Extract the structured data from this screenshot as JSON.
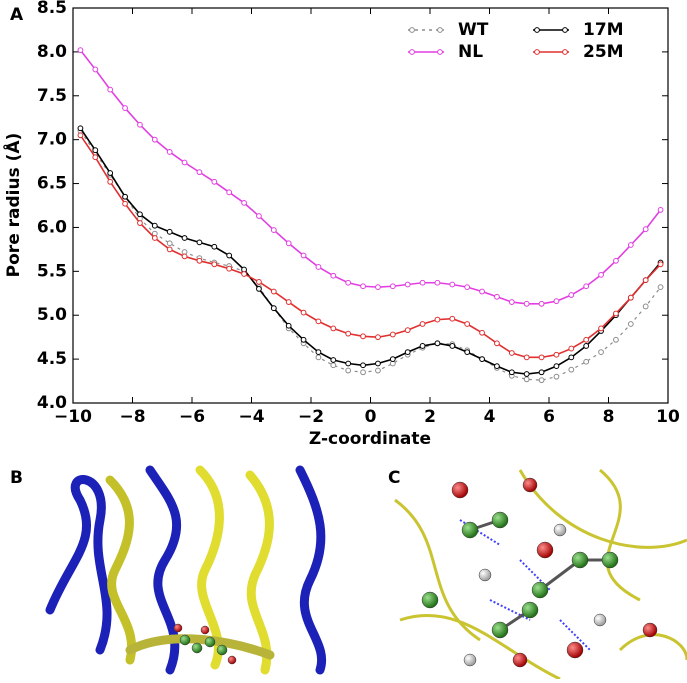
{
  "panel_labels": [
    "A",
    "B",
    "C"
  ],
  "chart_data": {
    "type": "line",
    "xlabel": "Z-coordinate",
    "ylabel": "Pore radius (Å)",
    "xlim": [
      -10,
      10
    ],
    "ylim": [
      4.0,
      8.5
    ],
    "xticks": [
      {
        "value": -10,
        "label": "−10"
      },
      {
        "value": -8,
        "label": "−8"
      },
      {
        "value": -6,
        "label": "−6"
      },
      {
        "value": -4,
        "label": "−4"
      },
      {
        "value": -2,
        "label": "−2"
      },
      0,
      2,
      4,
      6,
      8,
      10
    ],
    "yticks": [
      {
        "value": 4,
        "label": "4.0"
      },
      4.5,
      {
        "value": 5,
        "label": "5.0"
      },
      5.5,
      {
        "value": 6,
        "label": "6.0"
      },
      6.5,
      {
        "value": 7,
        "label": "7.0"
      },
      7.5,
      {
        "value": 8,
        "label": "8.0"
      },
      8.5
    ],
    "legend": "upper right",
    "x": [
      -9.75,
      -9.25,
      -8.75,
      -8.25,
      -7.75,
      -7.25,
      -6.75,
      -6.25,
      -5.75,
      -5.25,
      -4.75,
      -4.25,
      -3.75,
      -3.25,
      -2.75,
      -2.25,
      -1.75,
      -1.25,
      -0.75,
      -0.25,
      0.25,
      0.75,
      1.25,
      1.75,
      2.25,
      2.75,
      3.25,
      3.75,
      4.25,
      4.75,
      5.25,
      5.75,
      6.25,
      6.75,
      7.25,
      7.75,
      8.25,
      8.75,
      9.25,
      9.75
    ],
    "series": [
      {
        "name": "WT",
        "color": "#8c8c8c",
        "dashed": true,
        "values": [
          7.1,
          6.85,
          6.6,
          6.35,
          6.1,
          5.93,
          5.82,
          5.72,
          5.65,
          5.6,
          5.56,
          5.5,
          5.32,
          5.08,
          4.85,
          4.68,
          4.52,
          4.43,
          4.37,
          4.35,
          4.37,
          4.45,
          4.55,
          4.63,
          4.68,
          4.67,
          4.6,
          4.5,
          4.4,
          4.31,
          4.27,
          4.26,
          4.3,
          4.38,
          4.47,
          4.58,
          4.72,
          4.9,
          5.1,
          5.32
        ]
      },
      {
        "name": "NL",
        "color": "#e23fe2",
        "values": [
          8.02,
          7.8,
          7.57,
          7.36,
          7.17,
          7.0,
          6.86,
          6.74,
          6.63,
          6.52,
          6.4,
          6.28,
          6.13,
          5.97,
          5.82,
          5.68,
          5.55,
          5.45,
          5.37,
          5.33,
          5.32,
          5.33,
          5.35,
          5.37,
          5.37,
          5.35,
          5.32,
          5.27,
          5.21,
          5.15,
          5.13,
          5.13,
          5.16,
          5.23,
          5.33,
          5.46,
          5.62,
          5.8,
          5.98,
          6.2
        ]
      },
      {
        "name": "17M",
        "color": "#000000",
        "values": [
          7.13,
          6.88,
          6.62,
          6.35,
          6.15,
          6.02,
          5.95,
          5.88,
          5.83,
          5.78,
          5.68,
          5.52,
          5.3,
          5.08,
          4.88,
          4.72,
          4.58,
          4.49,
          4.45,
          4.43,
          4.45,
          4.5,
          4.58,
          4.65,
          4.68,
          4.65,
          4.58,
          4.5,
          4.42,
          4.35,
          4.33,
          4.35,
          4.42,
          4.52,
          4.65,
          4.82,
          5.0,
          5.2,
          5.4,
          5.6
        ]
      },
      {
        "name": "25M",
        "color": "#e03030",
        "values": [
          7.05,
          6.8,
          6.52,
          6.27,
          6.05,
          5.88,
          5.75,
          5.67,
          5.62,
          5.58,
          5.53,
          5.47,
          5.38,
          5.27,
          5.15,
          5.03,
          4.93,
          4.85,
          4.79,
          4.76,
          4.75,
          4.78,
          4.83,
          4.9,
          4.95,
          4.96,
          4.9,
          4.8,
          4.68,
          4.57,
          4.52,
          4.52,
          4.55,
          4.62,
          4.72,
          4.85,
          5.02,
          5.2,
          5.4,
          5.58
        ]
      }
    ]
  }
}
